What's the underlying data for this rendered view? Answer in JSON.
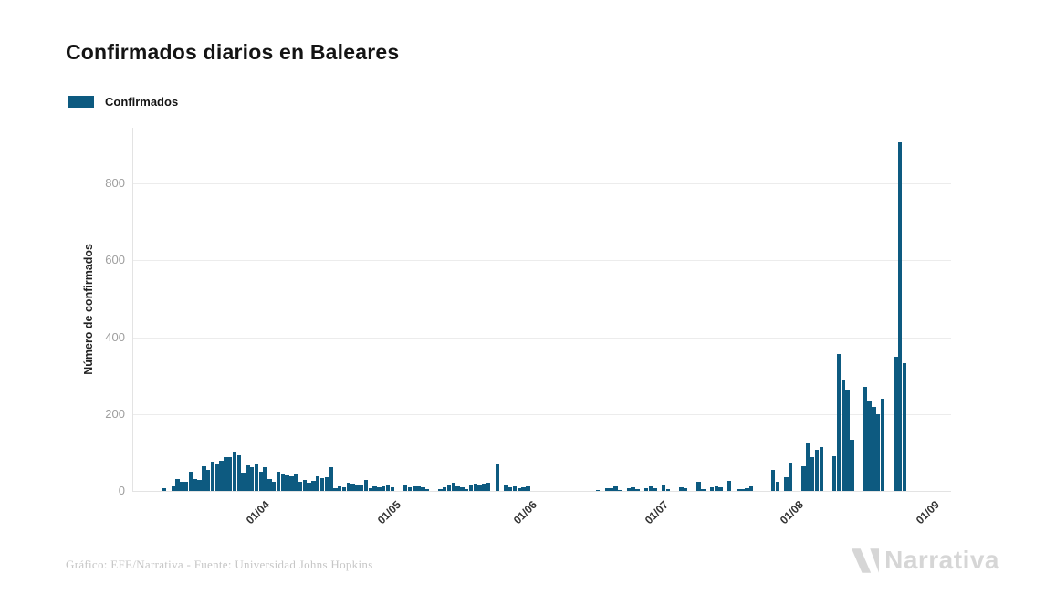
{
  "title": "Confirmados diarios en Baleares",
  "legend": {
    "label": "Confirmados",
    "color": "#0d5a80"
  },
  "footer": {
    "credit": "Gráfico: EFE/Narrativa - Fuente: Universidad Johns Hopkins",
    "brand": "Narrativa",
    "brand_color": "#d6d6d6"
  },
  "chart_data": {
    "type": "bar",
    "title": "Confirmados diarios en Baleares",
    "series_name": "Confirmados",
    "xlabel": "",
    "ylabel": "Número de confirmados",
    "bar_color": "#0d5a80",
    "grid": "horizontal",
    "legend_position": "top-left",
    "start_date": "12/03",
    "x_tick_labels": [
      "01/04",
      "01/05",
      "01/06",
      "01/07",
      "01/08",
      "01/09"
    ],
    "x_tick_day_indices": [
      20,
      50,
      81,
      111,
      142,
      173
    ],
    "y_ticks": [
      0,
      200,
      400,
      600,
      800
    ],
    "ylim": [
      0,
      945
    ],
    "values": [
      8,
      0,
      13,
      30,
      24,
      24,
      49,
      32,
      28,
      63,
      55,
      75,
      69,
      79,
      87,
      89,
      102,
      93,
      47,
      67,
      61,
      71,
      51,
      61,
      31,
      23,
      51,
      45,
      41,
      37,
      43,
      23,
      28,
      21,
      25,
      37,
      33,
      35,
      61,
      6,
      13,
      9,
      21,
      20,
      17,
      17,
      28,
      6,
      11,
      9,
      12,
      14,
      9,
      0,
      0,
      14,
      9,
      12,
      13,
      9,
      5,
      0,
      0,
      4,
      9,
      16,
      21,
      13,
      9,
      4,
      16,
      18,
      14,
      18,
      21,
      0,
      69,
      0,
      16,
      9,
      12,
      8,
      10,
      12,
      0,
      0,
      0,
      0,
      0,
      0,
      0,
      0,
      0,
      0,
      0,
      0,
      0,
      0,
      0,
      3,
      0,
      8,
      8,
      12,
      3,
      0,
      6,
      10,
      5,
      0,
      8,
      11,
      8,
      0,
      14,
      5,
      0,
      0,
      9,
      7,
      0,
      0,
      24,
      5,
      0,
      9,
      13,
      10,
      0,
      26,
      0,
      5,
      5,
      7,
      13,
      0,
      0,
      0,
      0,
      55,
      23,
      0,
      36,
      74,
      0,
      0,
      65,
      125,
      88,
      108,
      113,
      0,
      0,
      91,
      356,
      287,
      263,
      132,
      0,
      0,
      270,
      234,
      218,
      200,
      240,
      0,
      0,
      348,
      908,
      333
    ]
  }
}
